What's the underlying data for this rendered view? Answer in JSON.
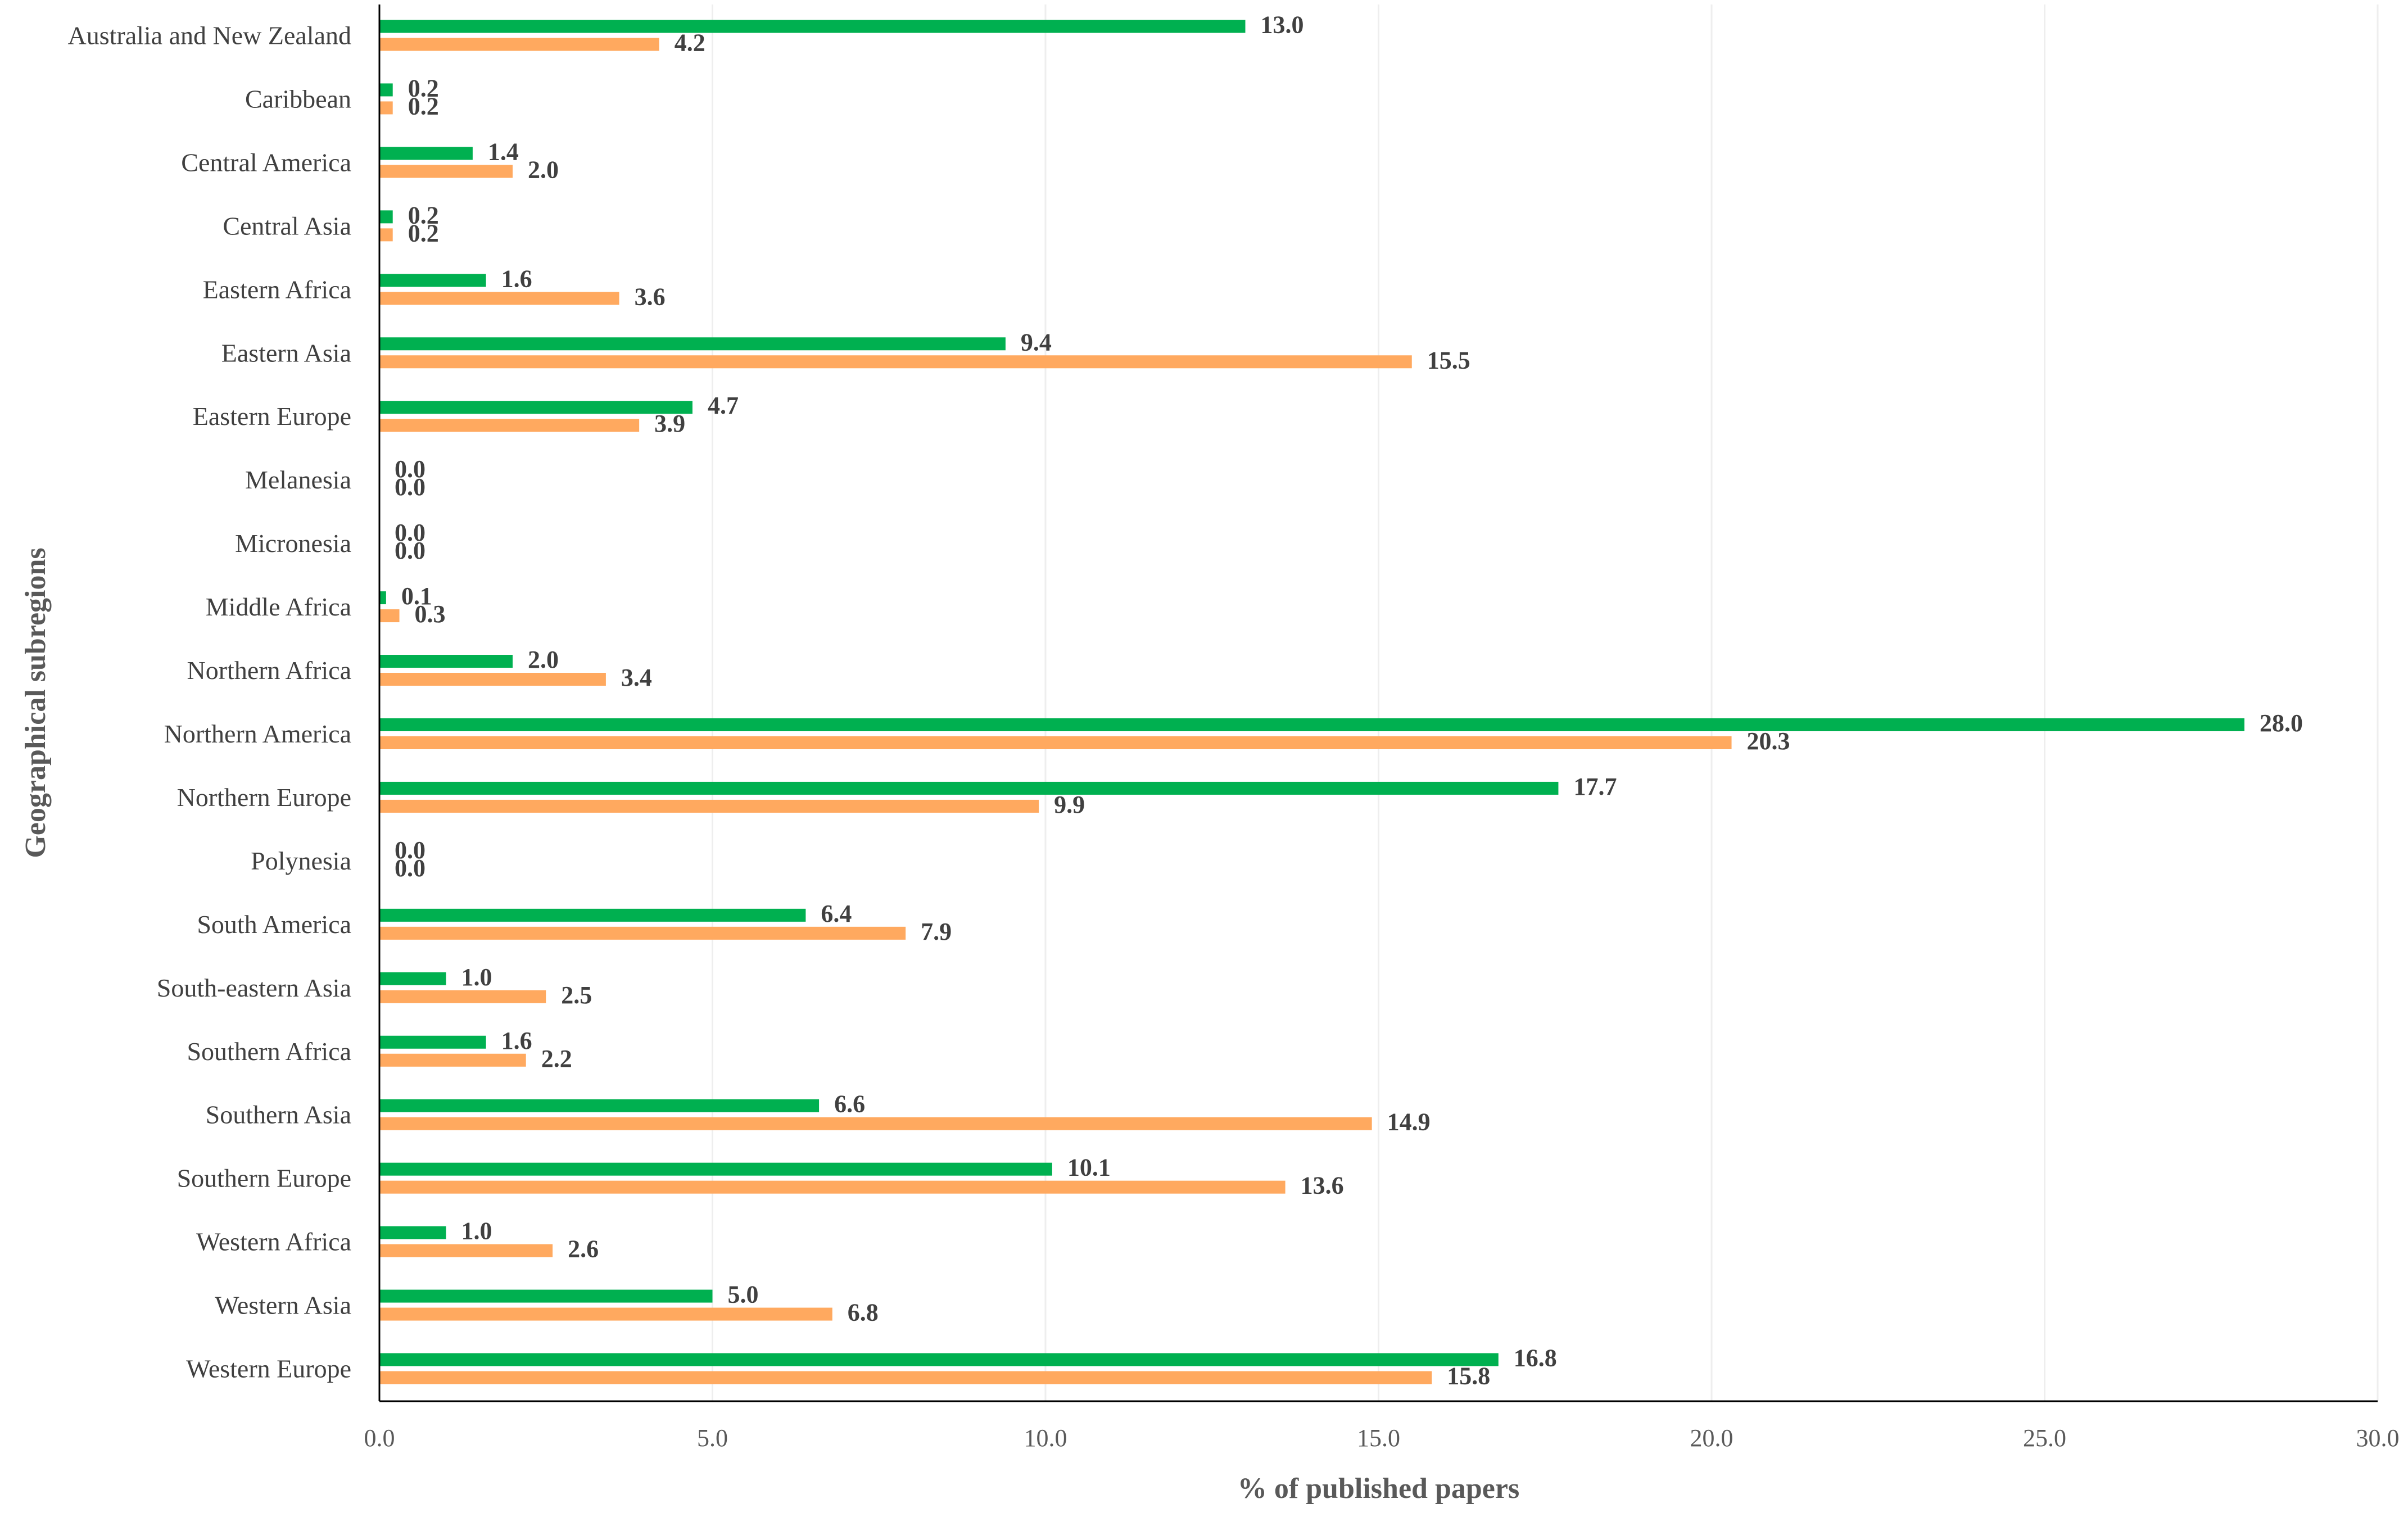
{
  "chart_data": {
    "type": "bar",
    "orientation": "horizontal",
    "title": "",
    "xlabel": "% of published papers",
    "ylabel": "Geographical subregions",
    "xlim": [
      0,
      30
    ],
    "x_ticks": [
      "0.0",
      "5.0",
      "10.0",
      "15.0",
      "20.0",
      "25.0",
      "30.0"
    ],
    "grid": "vertical",
    "legend": "none",
    "categories": [
      "Australia and New Zealand",
      "Caribbean",
      "Central America",
      "Central Asia",
      "Eastern Africa",
      "Eastern Asia",
      "Eastern Europe",
      "Melanesia",
      "Micronesia",
      "Middle Africa",
      "Northern Africa",
      "Northern America",
      "Northern Europe",
      "Polynesia",
      "South America",
      "South-eastern Asia",
      "Southern Africa",
      "Southern Asia",
      "Southern Europe",
      "Western Africa",
      "Western Asia",
      "Western Europe"
    ],
    "series": [
      {
        "color": "#00b050",
        "values": [
          13.0,
          0.2,
          1.4,
          0.2,
          1.6,
          9.4,
          4.7,
          0.0,
          0.0,
          0.1,
          2.0,
          28.0,
          17.7,
          0.0,
          6.4,
          1.0,
          1.6,
          6.6,
          10.1,
          1.0,
          5.0,
          16.8
        ],
        "labels": [
          "13.0",
          "0.2",
          "1.4",
          "0.2",
          "1.6",
          "9.4",
          "4.7",
          "0.0",
          "0.0",
          "0.1",
          "2.0",
          "28.0",
          "17.7",
          "0.0",
          "6.4",
          "1.0",
          "1.6",
          "6.6",
          "10.1",
          "1.0",
          "5.0",
          "16.8"
        ]
      },
      {
        "color": "#ffa95f",
        "values": [
          4.2,
          0.2,
          2.0,
          0.2,
          3.6,
          15.5,
          3.9,
          0.0,
          0.0,
          0.3,
          3.4,
          20.3,
          9.9,
          0.0,
          7.9,
          2.5,
          2.2,
          14.9,
          13.6,
          2.6,
          6.8,
          15.8
        ],
        "labels": [
          "4.2",
          "0.2",
          "2.0",
          "0.2",
          "3.6",
          "15.5",
          "3.9",
          "0.0",
          "0.0",
          "0.3",
          "3.4",
          "20.3",
          "9.9",
          "0.0",
          "7.9",
          "2.5",
          "2.2",
          "14.9",
          "13.6",
          "2.6",
          "6.8",
          "15.8"
        ]
      }
    ],
    "colors": {
      "grid": "#eeeeee",
      "axis": "#000000",
      "label": "#404040",
      "tick": "#595959"
    }
  }
}
